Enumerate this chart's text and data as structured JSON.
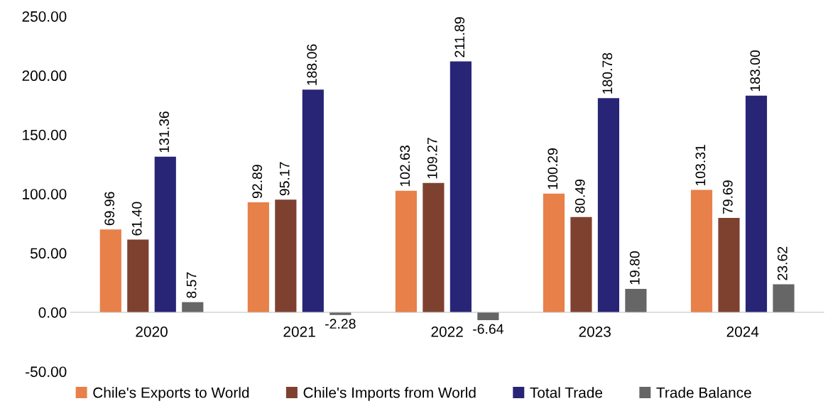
{
  "chart_data": {
    "type": "bar",
    "categories": [
      "2020",
      "2021",
      "2022",
      "2023",
      "2024"
    ],
    "series": [
      {
        "name": "Chile's Exports to World",
        "color": "#e8804a",
        "values": [
          69.96,
          92.89,
          102.63,
          100.29,
          103.31
        ],
        "value_labels": [
          "69.96",
          "92.89",
          "102.63",
          "100.29",
          "103.31"
        ]
      },
      {
        "name": "Chile's Imports from World",
        "color": "#7e4130",
        "values": [
          61.4,
          95.17,
          109.27,
          80.49,
          79.69
        ],
        "value_labels": [
          "61.40",
          "95.17",
          "109.27",
          "80.49",
          "79.69"
        ]
      },
      {
        "name": "Total Trade",
        "color": "#282577",
        "values": [
          131.36,
          188.06,
          211.89,
          180.78,
          183.0
        ],
        "value_labels": [
          "131.36",
          "188.06",
          "211.89",
          "180.78",
          "183.00"
        ]
      },
      {
        "name": "Trade Balance",
        "color": "#666666",
        "values": [
          8.57,
          -2.28,
          -6.64,
          19.8,
          23.62
        ],
        "value_labels": [
          "8.57",
          "-2.28",
          "-6.64",
          "19.80",
          "23.62"
        ]
      }
    ],
    "ylim": [
      -50,
      250
    ],
    "yticks": [
      {
        "value": -50,
        "label": "-50.00"
      },
      {
        "value": 0,
        "label": "0.00"
      },
      {
        "value": 50,
        "label": "50.00"
      },
      {
        "value": 100,
        "label": "100.00"
      },
      {
        "value": 150,
        "label": "150.00"
      },
      {
        "value": 200,
        "label": "200.00"
      },
      {
        "value": 250,
        "label": "250.00"
      }
    ],
    "grid": false,
    "legend": "bottom"
  }
}
